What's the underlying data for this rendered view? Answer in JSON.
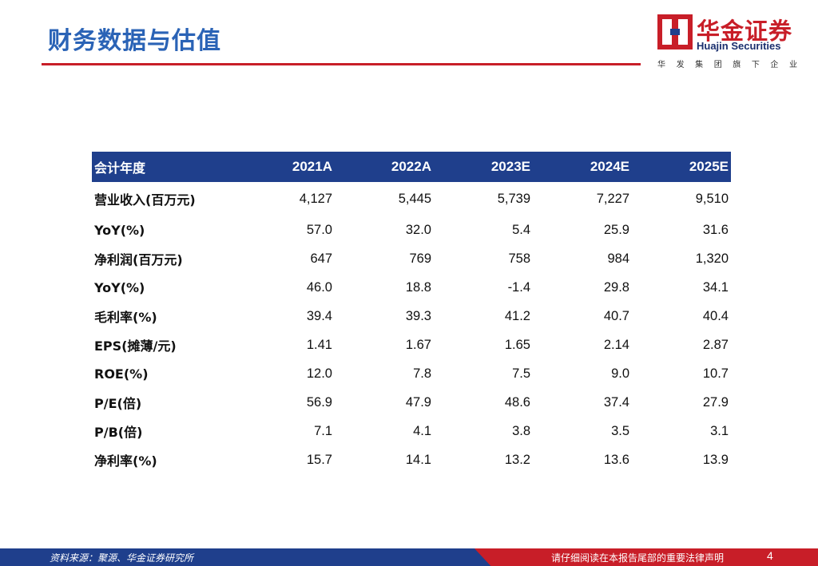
{
  "header": {
    "title": "财务数据与估值",
    "logo_cn": "华金证券",
    "logo_en": "Huajin Securities",
    "logo_sub": [
      "华",
      "发",
      "集",
      "团",
      "旗",
      "下",
      "企",
      "业"
    ],
    "brand_red": "#c81e28",
    "brand_blue": "#1f3f8c"
  },
  "table": {
    "headers": [
      "会计年度",
      "2021A",
      "2022A",
      "2023E",
      "2024E",
      "2025E"
    ],
    "rows": [
      {
        "label": "营业收入(百万元)",
        "values": [
          "4,127",
          "5,445",
          "5,739",
          "7,227",
          "9,510"
        ]
      },
      {
        "label": "YoY(%)",
        "values": [
          "57.0",
          "32.0",
          "5.4",
          "25.9",
          "31.6"
        ]
      },
      {
        "label": "净利润(百万元)",
        "values": [
          "647",
          "769",
          "758",
          "984",
          "1,320"
        ]
      },
      {
        "label": "YoY(%)",
        "values": [
          "46.0",
          "18.8",
          "-1.4",
          "29.8",
          "34.1"
        ]
      },
      {
        "label": "毛利率(%)",
        "values": [
          "39.4",
          "39.3",
          "41.2",
          "40.7",
          "40.4"
        ]
      },
      {
        "label": "EPS(摊薄/元)",
        "values": [
          "1.41",
          "1.67",
          "1.65",
          "2.14",
          "2.87"
        ]
      },
      {
        "label": "ROE(%)",
        "values": [
          "12.0",
          "7.8",
          "7.5",
          "9.0",
          "10.7"
        ]
      },
      {
        "label": "P/E(倍)",
        "values": [
          "56.9",
          "47.9",
          "48.6",
          "37.4",
          "27.9"
        ]
      },
      {
        "label": "P/B(倍)",
        "values": [
          "7.1",
          "4.1",
          "3.8",
          "3.5",
          "3.1"
        ]
      },
      {
        "label": "净利率(%)",
        "values": [
          "15.7",
          "14.1",
          "13.2",
          "13.6",
          "13.9"
        ]
      }
    ]
  },
  "footer": {
    "source": "资料来源：聚源、华金证券研究所",
    "disclaimer": "请仔细阅读在本报告尾部的重要法律声明",
    "page": "4"
  }
}
